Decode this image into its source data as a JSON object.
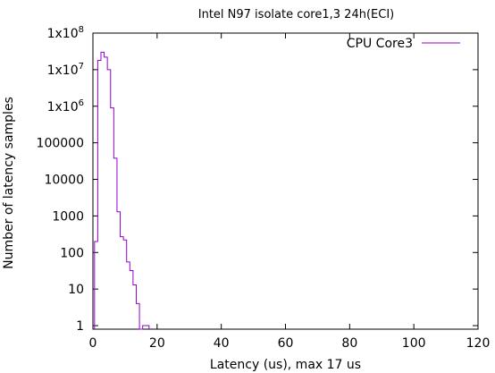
{
  "chart_data": {
    "type": "line",
    "step": true,
    "title": "Intel N97 isolate core1,3 24h(ECI)",
    "xlabel": "Latency (us), max 17 us",
    "ylabel": "Number of latency samples",
    "xlim": [
      0,
      120
    ],
    "ylim": [
      0.8,
      100000000
    ],
    "yscale": "log",
    "grid": false,
    "legend_position": "top-right",
    "x_ticks": [
      0,
      20,
      40,
      60,
      80,
      100,
      120
    ],
    "y_ticks": [
      {
        "value": 1,
        "label": "1"
      },
      {
        "value": 10,
        "label": "10"
      },
      {
        "value": 100,
        "label": "100"
      },
      {
        "value": 1000,
        "label": "1000"
      },
      {
        "value": 10000,
        "label": "10000"
      },
      {
        "value": 100000,
        "label": "100000"
      },
      {
        "value": 1000000,
        "label": "1x10",
        "exp": "6"
      },
      {
        "value": 10000000,
        "label": "1x10",
        "exp": "7"
      },
      {
        "value": 100000000,
        "label": "1x10",
        "exp": "8"
      }
    ],
    "series": [
      {
        "name": "CPU Core3",
        "color": "#9400d3",
        "x": [
          1,
          2,
          3,
          4,
          5,
          6,
          7,
          8,
          9,
          10,
          11,
          12,
          13,
          14,
          15,
          16,
          17
        ],
        "y": [
          200,
          18000000,
          30000000,
          22000000,
          10000000,
          900000,
          38000,
          1300,
          270,
          220,
          55,
          32,
          13,
          4,
          0,
          1,
          1
        ]
      }
    ]
  }
}
